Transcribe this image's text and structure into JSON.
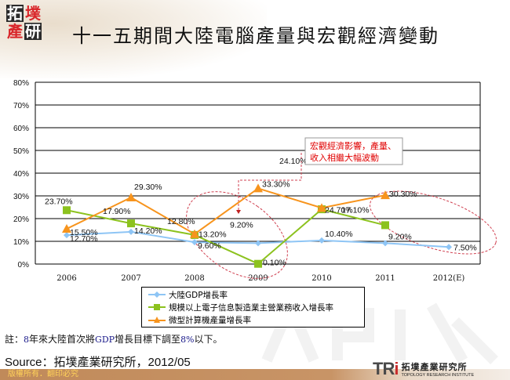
{
  "header": {
    "logo_chars": [
      "拓",
      "墣",
      "產",
      "研"
    ],
    "title": "十一五期間大陸電腦產量與宏觀經濟變動"
  },
  "chart_data": {
    "type": "line",
    "title": "十一五期間大陸電腦產量與宏觀經濟變動",
    "xlabel": "",
    "ylabel": "",
    "ylim": [
      0,
      80
    ],
    "yticks": [
      "0%",
      "10%",
      "20%",
      "30%",
      "40%",
      "50%",
      "60%",
      "70%",
      "80%"
    ],
    "categories": [
      "2006",
      "2007",
      "2008",
      "2009",
      "2010",
      "2011",
      "2012(E)"
    ],
    "grid": true,
    "legend_position": "bottom",
    "series": [
      {
        "name": "大陸GDP增長率",
        "color": "#8ec5f5",
        "marker": "diamond",
        "values": [
          12.7,
          14.2,
          9.6,
          9.2,
          10.4,
          9.2,
          7.5
        ],
        "labels": [
          "12.70%",
          "14.20%",
          "9.60%",
          "9.20%",
          "10.40%",
          "9.20%",
          "7.50%"
        ]
      },
      {
        "name": "規模以上電子信息製造業主營業務收入增長率",
        "color": "#8cc21e",
        "marker": "square",
        "values": [
          23.7,
          17.9,
          12.8,
          0.1,
          24.1,
          17.1,
          null
        ],
        "labels": [
          "23.70%",
          "17.90%",
          "12.80%",
          "0.10%",
          "24.10%",
          "17.10%",
          ""
        ]
      },
      {
        "name": "微型計算機產量增長率",
        "color": "#f7941d",
        "marker": "triangle",
        "values": [
          15.5,
          29.3,
          13.2,
          33.3,
          24.7,
          30.3,
          null
        ],
        "labels": [
          "15.50%",
          "29.30%",
          "13.20%",
          "33.30%",
          "24.70%",
          "30.30%",
          ""
        ]
      }
    ],
    "annotations": [
      {
        "text": "宏觀經濟影響，產量、收入相繼大幅波動",
        "color": "#e00000"
      }
    ]
  },
  "legend": {
    "items": [
      {
        "label": "大陸GDP增長率",
        "color": "#8ec5f5"
      },
      {
        "label": "規模以上電子信息製造業主營業務收入增長率",
        "color": "#8cc21e"
      },
      {
        "label": "微型計算機產量增長率",
        "color": "#f7941d"
      }
    ]
  },
  "callout": {
    "line1": "宏觀經濟影響，產量、",
    "line2": "收入相繼大幅波動"
  },
  "note": {
    "prefix": "註：",
    "n1": "8",
    "t1": "年來大陸首次將",
    "gdp": "GDP",
    "t2": "增長目標下調至",
    "pct": "8%",
    "t3": "以下。"
  },
  "source": "Source：拓墣產業研究所，2012/05",
  "footer": {
    "copyright": "版權所有．翻印必究"
  },
  "brand": {
    "mark_a": "TR",
    "mark_b": "i",
    "name_cn": "拓墣產業研究所",
    "name_en": "TOPOLOGY RESEARCH INSTITUTE"
  }
}
